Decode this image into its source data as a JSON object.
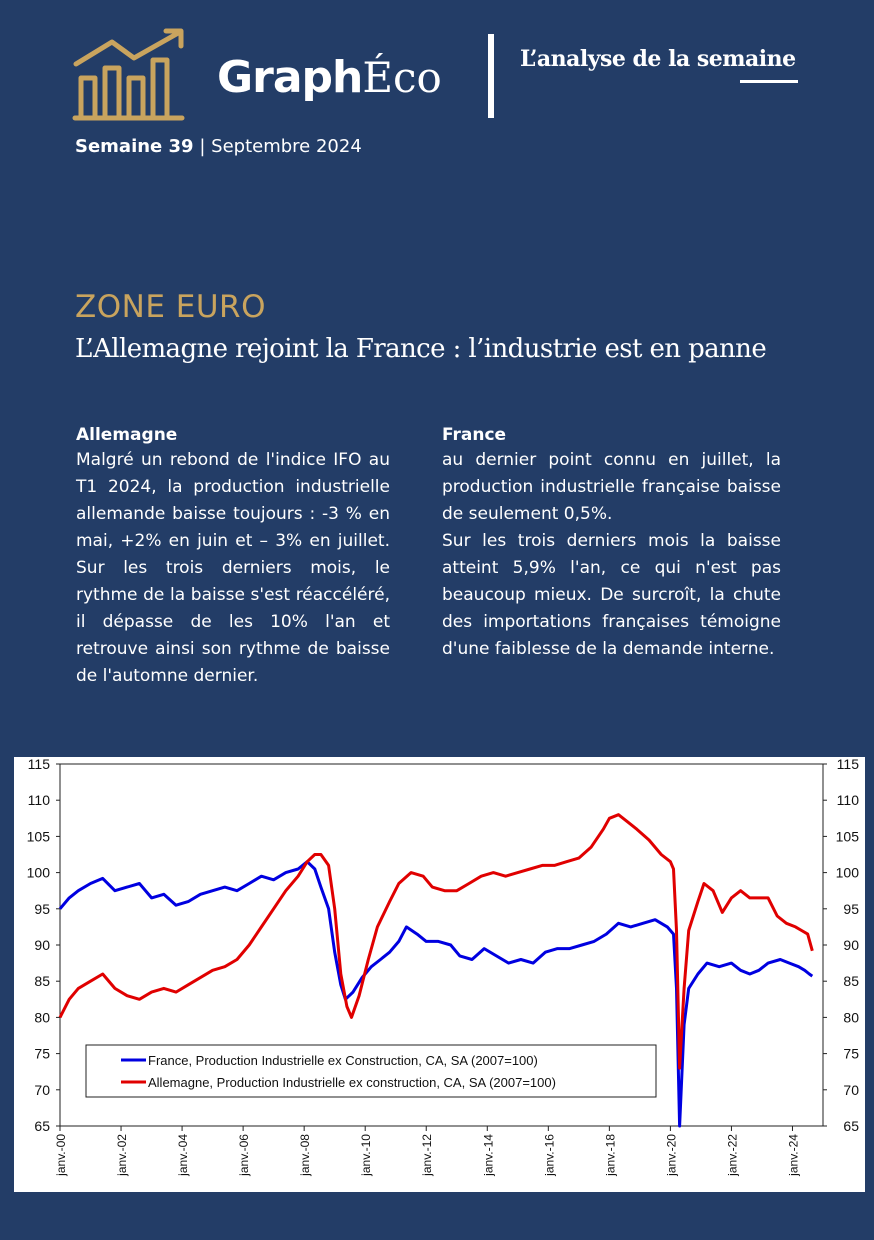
{
  "header": {
    "brand_graph": "Graph",
    "brand_eco": "Éco",
    "tagline": "L’analyse de la semaine",
    "week": "Semaine 39",
    "separator": "|",
    "month": "Septembre 2024"
  },
  "article": {
    "kicker": "ZONE EURO",
    "headline": "L’Allemagne rejoint la France : l’industrie est en panne",
    "left": {
      "title": "Allemagne",
      "body": "Malgré un rebond de l'indice IFO au T1 2024, la production industrielle allemande baisse toujours : -3 % en mai, +2% en juin et – 3% en juillet. Sur les trois derniers mois, le rythme de la baisse s'est réaccéléré, il dé­passe de les 10% l'an et retrouve ainsi son rythme de baisse de l'automne dernier."
    },
    "right": {
      "title": "France",
      "body1": "au dernier point connu en juillet, la production industrielle française baisse de seulement 0,5%.",
      "body2": "Sur les trois derniers mois la baisse atteint 5,9% l'an, ce qui n'est pas beaucoup mieux. De surcroît, la chute des importations françaises témoigne d'une faiblesse de la demande interne."
    }
  },
  "chart_data": {
    "type": "line",
    "ylim": [
      65,
      115
    ],
    "yticks": [
      65,
      70,
      75,
      80,
      85,
      90,
      95,
      100,
      105,
      110,
      115
    ],
    "xlim": [
      2000.0,
      2025.0
    ],
    "xticks": [
      {
        "label": "janv.-00",
        "x": 2000
      },
      {
        "label": "janv.-02",
        "x": 2002
      },
      {
        "label": "janv.-04",
        "x": 2004
      },
      {
        "label": "janv.-06",
        "x": 2006
      },
      {
        "label": "janv.-08",
        "x": 2008
      },
      {
        "label": "janv.-10",
        "x": 2010
      },
      {
        "label": "janv.-12",
        "x": 2012
      },
      {
        "label": "janv.-14",
        "x": 2014
      },
      {
        "label": "janv.-16",
        "x": 2016
      },
      {
        "label": "janv.-18",
        "x": 2018
      },
      {
        "label": "janv.-20",
        "x": 2020
      },
      {
        "label": "janv.-22",
        "x": 2022
      },
      {
        "label": "janv.-24",
        "x": 2024
      }
    ],
    "legend_position": "bottom-left",
    "series": [
      {
        "name": "France, Production Industrielle ex Construction, CA, SA (2007=100)",
        "color": "#0000e0",
        "points": [
          [
            2000.0,
            95.0
          ],
          [
            2000.3,
            96.5
          ],
          [
            2000.6,
            97.5
          ],
          [
            2001.0,
            98.5
          ],
          [
            2001.4,
            99.2
          ],
          [
            2001.8,
            97.5
          ],
          [
            2002.2,
            98.0
          ],
          [
            2002.6,
            98.5
          ],
          [
            2003.0,
            96.5
          ],
          [
            2003.4,
            97.0
          ],
          [
            2003.8,
            95.5
          ],
          [
            2004.2,
            96.0
          ],
          [
            2004.6,
            97.0
          ],
          [
            2005.0,
            97.5
          ],
          [
            2005.4,
            98.0
          ],
          [
            2005.8,
            97.5
          ],
          [
            2006.2,
            98.5
          ],
          [
            2006.6,
            99.5
          ],
          [
            2007.0,
            99.0
          ],
          [
            2007.4,
            100.0
          ],
          [
            2007.8,
            100.5
          ],
          [
            2008.1,
            101.5
          ],
          [
            2008.35,
            100.5
          ],
          [
            2008.55,
            98.0
          ],
          [
            2008.8,
            95.0
          ],
          [
            2009.0,
            89.0
          ],
          [
            2009.2,
            84.5
          ],
          [
            2009.35,
            82.5
          ],
          [
            2009.6,
            83.5
          ],
          [
            2009.9,
            85.5
          ],
          [
            2010.2,
            87.0
          ],
          [
            2010.5,
            88.0
          ],
          [
            2010.8,
            89.0
          ],
          [
            2011.1,
            90.5
          ],
          [
            2011.35,
            92.5
          ],
          [
            2011.7,
            91.5
          ],
          [
            2012.0,
            90.5
          ],
          [
            2012.4,
            90.5
          ],
          [
            2012.8,
            90.0
          ],
          [
            2013.1,
            88.5
          ],
          [
            2013.5,
            88.0
          ],
          [
            2013.9,
            89.5
          ],
          [
            2014.3,
            88.5
          ],
          [
            2014.7,
            87.5
          ],
          [
            2015.1,
            88.0
          ],
          [
            2015.5,
            87.5
          ],
          [
            2015.9,
            89.0
          ],
          [
            2016.3,
            89.5
          ],
          [
            2016.7,
            89.5
          ],
          [
            2017.1,
            90.0
          ],
          [
            2017.5,
            90.5
          ],
          [
            2017.9,
            91.5
          ],
          [
            2018.3,
            93.0
          ],
          [
            2018.7,
            92.5
          ],
          [
            2019.1,
            93.0
          ],
          [
            2019.5,
            93.5
          ],
          [
            2019.9,
            92.5
          ],
          [
            2020.1,
            91.5
          ],
          [
            2020.2,
            84.0
          ],
          [
            2020.3,
            65.0
          ],
          [
            2020.45,
            79.0
          ],
          [
            2020.6,
            84.0
          ],
          [
            2020.9,
            86.0
          ],
          [
            2021.2,
            87.5
          ],
          [
            2021.6,
            87.0
          ],
          [
            2022.0,
            87.5
          ],
          [
            2022.3,
            86.5
          ],
          [
            2022.6,
            86.0
          ],
          [
            2022.9,
            86.5
          ],
          [
            2023.2,
            87.5
          ],
          [
            2023.6,
            88.0
          ],
          [
            2023.9,
            87.5
          ],
          [
            2024.2,
            87.0
          ],
          [
            2024.4,
            86.5
          ],
          [
            2024.55,
            86.0
          ],
          [
            2024.65,
            85.7
          ]
        ]
      },
      {
        "name": "Allemagne, Production Industrielle ex construction, CA, SA (2007=100)",
        "color": "#e00000",
        "points": [
          [
            2000.0,
            80.0
          ],
          [
            2000.3,
            82.5
          ],
          [
            2000.6,
            84.0
          ],
          [
            2001.0,
            85.0
          ],
          [
            2001.4,
            86.0
          ],
          [
            2001.8,
            84.0
          ],
          [
            2002.2,
            83.0
          ],
          [
            2002.6,
            82.5
          ],
          [
            2003.0,
            83.5
          ],
          [
            2003.4,
            84.0
          ],
          [
            2003.8,
            83.5
          ],
          [
            2004.2,
            84.5
          ],
          [
            2004.6,
            85.5
          ],
          [
            2005.0,
            86.5
          ],
          [
            2005.4,
            87.0
          ],
          [
            2005.8,
            88.0
          ],
          [
            2006.2,
            90.0
          ],
          [
            2006.6,
            92.5
          ],
          [
            2007.0,
            95.0
          ],
          [
            2007.4,
            97.5
          ],
          [
            2007.8,
            99.5
          ],
          [
            2008.1,
            101.5
          ],
          [
            2008.35,
            102.5
          ],
          [
            2008.55,
            102.5
          ],
          [
            2008.8,
            101.0
          ],
          [
            2009.0,
            95.0
          ],
          [
            2009.2,
            86.0
          ],
          [
            2009.4,
            81.5
          ],
          [
            2009.55,
            80.0
          ],
          [
            2009.8,
            83.0
          ],
          [
            2010.1,
            88.0
          ],
          [
            2010.4,
            92.5
          ],
          [
            2010.8,
            96.0
          ],
          [
            2011.1,
            98.5
          ],
          [
            2011.5,
            100.0
          ],
          [
            2011.9,
            99.5
          ],
          [
            2012.2,
            98.0
          ],
          [
            2012.6,
            97.5
          ],
          [
            2013.0,
            97.5
          ],
          [
            2013.4,
            98.5
          ],
          [
            2013.8,
            99.5
          ],
          [
            2014.2,
            100.0
          ],
          [
            2014.6,
            99.5
          ],
          [
            2015.0,
            100.0
          ],
          [
            2015.4,
            100.5
          ],
          [
            2015.8,
            101.0
          ],
          [
            2016.2,
            101.0
          ],
          [
            2016.6,
            101.5
          ],
          [
            2017.0,
            102.0
          ],
          [
            2017.4,
            103.5
          ],
          [
            2017.8,
            106.0
          ],
          [
            2018.0,
            107.5
          ],
          [
            2018.3,
            108.0
          ],
          [
            2018.6,
            107.0
          ],
          [
            2018.9,
            106.0
          ],
          [
            2019.3,
            104.5
          ],
          [
            2019.7,
            102.5
          ],
          [
            2020.0,
            101.5
          ],
          [
            2020.1,
            100.5
          ],
          [
            2020.2,
            92.0
          ],
          [
            2020.3,
            73.0
          ],
          [
            2020.45,
            84.0
          ],
          [
            2020.6,
            92.0
          ],
          [
            2020.9,
            96.0
          ],
          [
            2021.1,
            98.5
          ],
          [
            2021.4,
            97.5
          ],
          [
            2021.7,
            94.5
          ],
          [
            2022.0,
            96.5
          ],
          [
            2022.3,
            97.5
          ],
          [
            2022.6,
            96.5
          ],
          [
            2022.9,
            96.5
          ],
          [
            2023.2,
            96.5
          ],
          [
            2023.5,
            94.0
          ],
          [
            2023.8,
            93.0
          ],
          [
            2024.1,
            92.5
          ],
          [
            2024.3,
            92.0
          ],
          [
            2024.5,
            91.5
          ],
          [
            2024.65,
            89.2
          ]
        ]
      }
    ]
  },
  "colors": {
    "background": "#233d67",
    "accent": "#c9a45e",
    "france": "#0000e0",
    "allemagne": "#e00000"
  },
  "icons": {
    "logo": "bar-chart-arrow-icon"
  }
}
